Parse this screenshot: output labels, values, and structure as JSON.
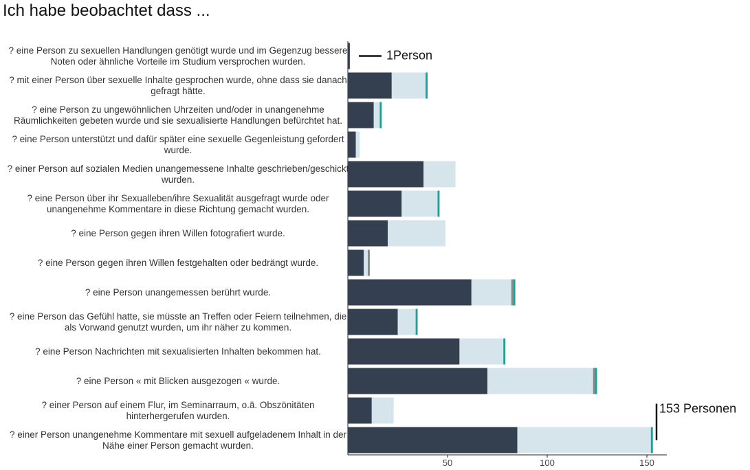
{
  "chart_data": {
    "type": "bar",
    "orientation": "horizontal",
    "stacked": true,
    "title": "Ich habe beobachtet dass ...",
    "categories": [
      "? eine Person zu sexuellen Handlungen genötigt wurde und im Gegenzug bessere Noten oder ähnliche Vorteile im Studium versprochen wurden.",
      "? mit einer Person über sexuelle Inhalte gesprochen wurde, ohne dass sie danach gefragt hätte.",
      "? eine Person zu ungewöhnlichen Uhrzeiten und/oder in unangenehme Räumlichkeiten gebeten wurde und sie sexualisierte Handlungen befürchtet hat.",
      "? eine Person unterstützt und dafür später eine sexuelle Gegenleistung gefordert wurde.",
      "? einer Person auf sozialen Medien unangemessene Inhalte geschrieben/geschickt wurden.",
      "? eine Person über ihr Sexualleben/ihre Sexualität ausgefragt wurde oder unangenehme Kommentare in diese Richtung gemacht wurden.",
      "? eine Person gegen ihren Willen fotografiert wurde.",
      "? eine Person gegen ihren Willen festgehalten oder bedrängt wurde.",
      "? eine Person unangemessen berührt wurde.",
      "? eine Person das Gefühl hatte, sie müsste an Treffen oder Feiern teilnehmen, die als Vorwand genutzt wurden, um ihr näher zu kommen.",
      "? eine Person Nachrichten mit sexualisierten Inhalten bekommen hat.",
      "? eine Person « mit Blicken ausgezogen « wurde.",
      "? einer Person auf einem Flur, im Seminarraum, o.ä. Obszönitäten hinterhergerufen wurden.",
      "? einer Person unangenehme Kommentare mit sexuell aufgeladenem Inhalt in der Nähe einer Person gemacht wurden."
    ],
    "series": [
      {
        "color": "#343f50",
        "values": [
          1,
          22,
          13,
          4,
          38,
          27,
          20,
          8,
          62,
          25,
          56,
          70,
          12,
          85
        ]
      },
      {
        "color": "#d6e4ec",
        "values": [
          null,
          17,
          3,
          2,
          16,
          18,
          29,
          2,
          20,
          9,
          22,
          53,
          11,
          67
        ]
      },
      {
        "color": "#888888",
        "values": [
          null,
          null,
          null,
          null,
          null,
          null,
          null,
          1,
          1,
          null,
          null,
          1,
          null,
          null
        ]
      },
      {
        "color": "#17a39a",
        "values": [
          null,
          1,
          1,
          null,
          null,
          1,
          null,
          null,
          1,
          1,
          1,
          1,
          null,
          1
        ]
      }
    ],
    "xlim": [
      0,
      160
    ],
    "xticks": [
      50,
      100,
      150
    ],
    "annotations": [
      "1Person",
      "153 Personen"
    ]
  }
}
